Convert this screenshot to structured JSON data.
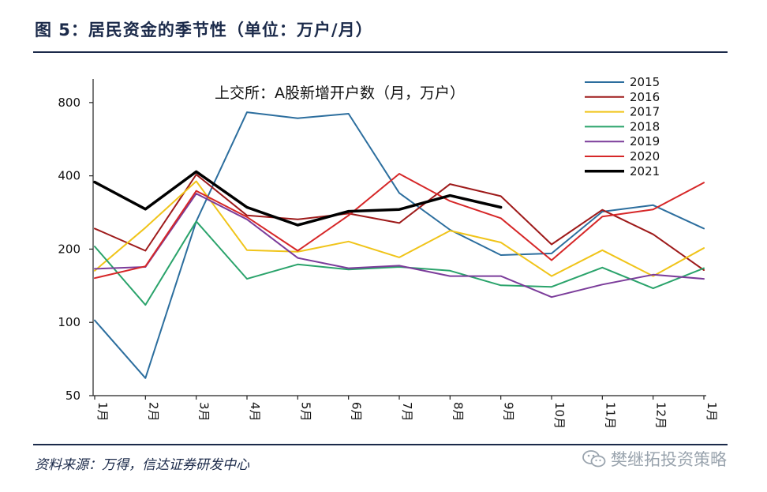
{
  "title": "图 5：居民资金的季节性（单位：万户/月）",
  "source": "资料来源：万得，信达证券研发中心",
  "watermark": "樊继拓投资策略",
  "watermark_icon": "wechat-icon",
  "chart_data": {
    "type": "line",
    "title": "上交所：A股新增开户数（月，万户）",
    "y_scale": "log",
    "ylim": [
      50,
      1000
    ],
    "y_ticks": [
      50,
      100,
      200,
      400,
      800
    ],
    "categories": [
      "1月",
      "2月",
      "3月",
      "4月",
      "5月",
      "6月",
      "7月",
      "8月",
      "9月",
      "10月",
      "11月",
      "12月",
      "1月"
    ],
    "legend_position": "top-right",
    "series": [
      {
        "name": "2015",
        "color": "#2c6e9e",
        "width": 2,
        "values": [
          102,
          59,
          260,
          730,
          690,
          720,
          340,
          240,
          189,
          192,
          285,
          303,
          243
        ]
      },
      {
        "name": "2016",
        "color": "#9e1a1a",
        "width": 2,
        "values": [
          243,
          197,
          405,
          275,
          265,
          280,
          256,
          370,
          330,
          209,
          290,
          230,
          164
        ]
      },
      {
        "name": "2017",
        "color": "#f0c419",
        "width": 2,
        "values": [
          163,
          245,
          380,
          198,
          195,
          215,
          185,
          238,
          213,
          155,
          198,
          155,
          202
        ]
      },
      {
        "name": "2018",
        "color": "#2aa36b",
        "width": 2,
        "values": [
          205,
          118,
          260,
          151,
          173,
          165,
          169,
          163,
          142,
          140,
          168,
          138,
          167
        ]
      },
      {
        "name": "2019",
        "color": "#7b3c9a",
        "width": 2,
        "values": [
          166,
          169,
          338,
          265,
          184,
          167,
          171,
          155,
          155,
          127,
          143,
          157,
          151
        ]
      },
      {
        "name": "2020",
        "color": "#d62728",
        "width": 2,
        "values": [
          152,
          170,
          347,
          271,
          197,
          275,
          408,
          315,
          268,
          180,
          272,
          291,
          375
        ]
      },
      {
        "name": "2021",
        "color": "#000000",
        "width": 3.5,
        "values": [
          377,
          292,
          416,
          297,
          251,
          286,
          291,
          332,
          297,
          null,
          null,
          null,
          null
        ]
      }
    ]
  }
}
